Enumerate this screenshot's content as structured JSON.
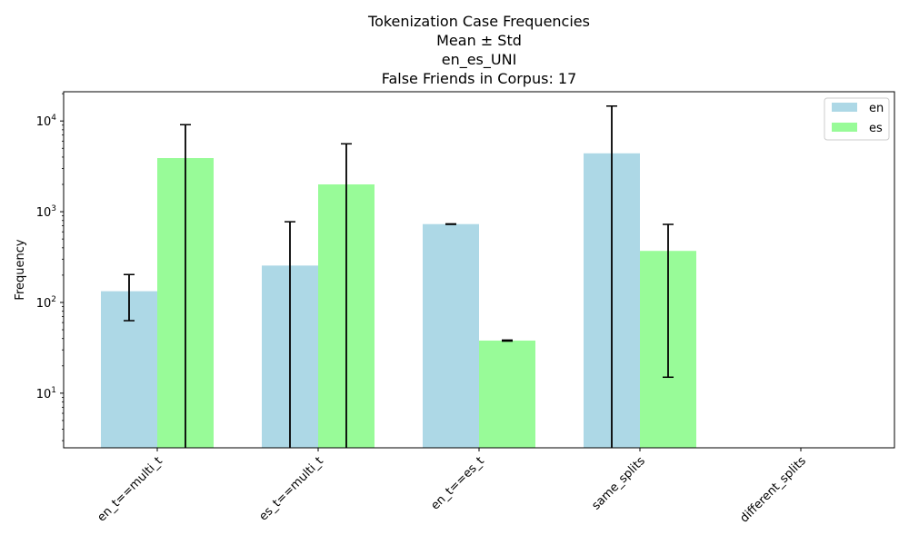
{
  "chart_data": {
    "type": "bar",
    "title_lines": [
      "Tokenization Case Frequencies",
      "Mean ± Std",
      "en_es_UNI",
      "False Friends in Corpus: 17"
    ],
    "xlabel": "",
    "ylabel": "Frequency",
    "yscale": "log",
    "ylim": [
      2.5,
      21000
    ],
    "yticks": [
      {
        "value": 10,
        "base": "10",
        "exp": "1"
      },
      {
        "value": 100,
        "base": "10",
        "exp": "2"
      },
      {
        "value": 1000,
        "base": "10",
        "exp": "3"
      },
      {
        "value": 10000,
        "base": "10",
        "exp": "4"
      }
    ],
    "categories": [
      "en_t==multi_t",
      "es_t==multi_t",
      "en_t==es_t",
      "same_splits",
      "different_splits"
    ],
    "series": [
      {
        "name": "en",
        "color": "#add8e6",
        "values": [
          133,
          255,
          730,
          4400,
          0
        ],
        "std": [
          70,
          520,
          5,
          10200,
          0
        ]
      },
      {
        "name": "es",
        "color": "#98fb98",
        "values": [
          3900,
          2000,
          38,
          370,
          0
        ],
        "std": [
          5200,
          3600,
          0.5,
          355,
          0
        ]
      }
    ],
    "legend": {
      "position": "top-right"
    },
    "grid": false
  }
}
